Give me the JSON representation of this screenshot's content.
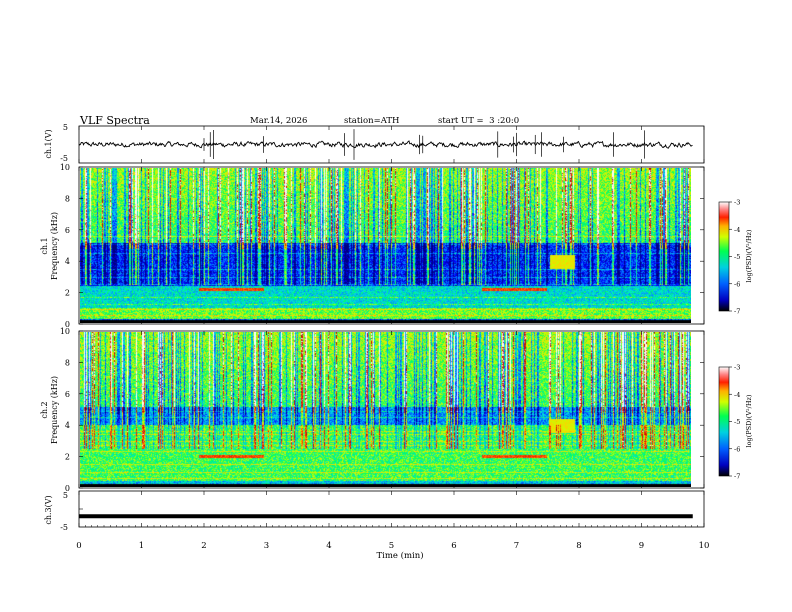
{
  "header": {
    "title": "VLF Spectra",
    "date": "Mar.14, 2026",
    "station": "station=ATH",
    "start": "start UT =  3 :20:0"
  },
  "chart_data": [
    {
      "type": "line",
      "panel": "ch1-waveform",
      "ylabel": "ch.1(V)",
      "ylim": [
        -5,
        5
      ],
      "y_ticks": [
        "5",
        "-5"
      ],
      "x_range": [
        0,
        10
      ],
      "baseline": 0,
      "note": "noisy trace near 0 V with short spikes"
    },
    {
      "type": "heatmap",
      "panel": "ch1-spectrogram",
      "ylabel": "ch.1\nFrequency (kHz)",
      "ylim": [
        0,
        10
      ],
      "y_ticks": [
        "0",
        "2",
        "4",
        "6",
        "8",
        "10"
      ],
      "x_range": [
        0,
        9.82
      ],
      "colorbar": {
        "label": "log(PSD)(V²/Hz)",
        "range": [
          -7,
          -3
        ],
        "ticks": [
          "-3",
          "-4",
          "-5",
          "-6",
          "-7"
        ]
      },
      "features": [
        {
          "time_min": [
            0,
            10
          ],
          "freq_khz": [
            4.8,
            10
          ],
          "level": "high, impulsive (sferics)"
        },
        {
          "time_min": [
            0,
            10
          ],
          "freq_khz": [
            2.4,
            4.8
          ],
          "level": "low"
        },
        {
          "time_min": [
            7.55,
            7.95
          ],
          "freq_khz": [
            3.5,
            4.4
          ],
          "level": "enhanced emission"
        },
        {
          "time_min": [
            1.9,
            2.95
          ],
          "freq_khz": [
            2.1,
            2.3
          ],
          "level": "narrowband line"
        },
        {
          "time_min": [
            6.45,
            7.5
          ],
          "freq_khz": [
            2.1,
            2.3
          ],
          "level": "narrowband line"
        }
      ]
    },
    {
      "type": "heatmap",
      "panel": "ch2-spectrogram",
      "ylabel": "ch.2\nFrequency (kHz)",
      "ylim": [
        0,
        10
      ],
      "y_ticks": [
        "0",
        "2",
        "4",
        "6",
        "8",
        "10"
      ],
      "x_range": [
        0,
        9.82
      ],
      "colorbar": {
        "label": "log(PSD)(V²/Hz)",
        "range": [
          -7,
          -3
        ],
        "ticks": [
          "-3",
          "-4",
          "-5",
          "-6",
          "-7"
        ]
      },
      "features": [
        {
          "time_min": [
            0,
            10
          ],
          "freq_khz": [
            4.8,
            10
          ],
          "level": "high, impulsive (sferics)"
        },
        {
          "time_min": [
            0,
            10
          ],
          "freq_khz": [
            0.2,
            3.5
          ],
          "level": "broadband, moderate"
        },
        {
          "time_min": [
            7.55,
            7.95
          ],
          "freq_khz": [
            3.5,
            4.4
          ],
          "level": "enhanced emission"
        },
        {
          "time_min": [
            1.9,
            2.95
          ],
          "freq_khz": [
            1.9,
            2.1
          ],
          "level": "narrowband line"
        },
        {
          "time_min": [
            6.45,
            7.5
          ],
          "freq_khz": [
            1.9,
            2.1
          ],
          "level": "narrowband line"
        }
      ]
    },
    {
      "type": "line",
      "panel": "ch3-waveform",
      "ylabel": "ch.3(V)",
      "ylim": [
        -5,
        5
      ],
      "y_ticks": [
        "5",
        "0",
        "-5"
      ],
      "x_range": [
        0,
        10
      ],
      "xlabel": "Time (min)",
      "x_ticks": [
        "0",
        "1",
        "2",
        "3",
        "4",
        "5",
        "6",
        "7",
        "8",
        "9",
        "10"
      ],
      "baseline": -2
    }
  ],
  "colors": {
    "colormap": [
      "#000080",
      "#0000ff",
      "#0080ff",
      "#00e0e0",
      "#00ff60",
      "#c8ff00",
      "#ffd000",
      "#ff3000",
      "#b00000",
      "#ffffff"
    ]
  }
}
